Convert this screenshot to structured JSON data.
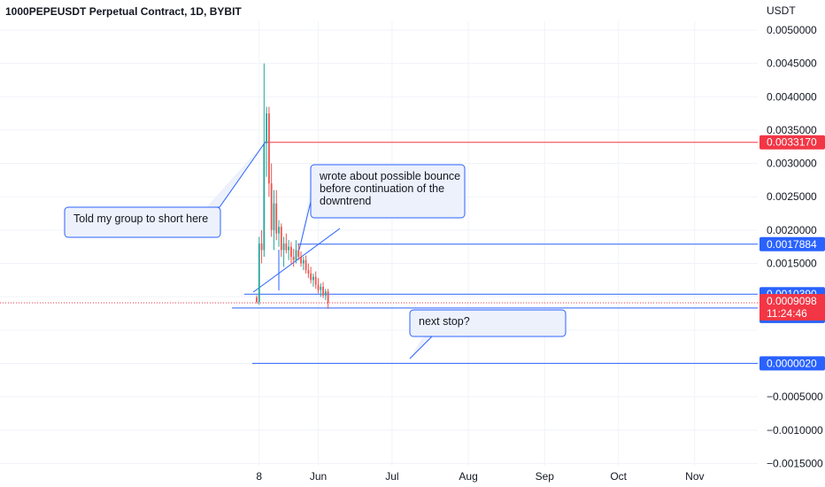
{
  "header": {
    "title": "1000PEPEUSDT Perpetual Contract, 1D, BYBIT",
    "currency": "USDT"
  },
  "colors": {
    "bull": "#26a69a",
    "bear": "#ef5350",
    "annotation": "#2962ff",
    "red_line": "#f23645",
    "note_fill": "#edf1fc",
    "note_border": "#2962ff"
  },
  "chart_data": {
    "type": "candlestick",
    "ylim": [
      -0.0015,
      0.005
    ],
    "y_ticks": [
      {
        "value": 0.005,
        "label": "0.0050000"
      },
      {
        "value": 0.0045,
        "label": "0.0045000"
      },
      {
        "value": 0.004,
        "label": "0.0040000"
      },
      {
        "value": 0.0035,
        "label": "0.0035000"
      },
      {
        "value": 0.003,
        "label": "0.0030000"
      },
      {
        "value": 0.0025,
        "label": "0.0025000"
      },
      {
        "value": 0.002,
        "label": "0.0020000"
      },
      {
        "value": 0.0015,
        "label": "0.0015000"
      },
      {
        "value": -0.0005,
        "label": "−0.0005000"
      },
      {
        "value": -0.001,
        "label": "−0.0010000"
      },
      {
        "value": -0.0015,
        "label": "−0.0015000"
      }
    ],
    "x_ticks": [
      {
        "day": 8,
        "label": "8"
      },
      {
        "day": 32,
        "label": "Jun"
      },
      {
        "day": 62,
        "label": "Jul"
      },
      {
        "day": 93,
        "label": "Aug"
      },
      {
        "day": 124,
        "label": "Sep"
      },
      {
        "day": 154,
        "label": "Oct"
      },
      {
        "day": 185,
        "label": "Nov"
      }
    ],
    "candles": [
      [
        0.00099,
        0.00102,
        0.0009,
        0.00092
      ],
      [
        0.00092,
        0.0019,
        0.00088,
        0.0018
      ],
      [
        0.0018,
        0.002,
        0.0015,
        0.0017
      ],
      [
        0.0017,
        0.0045,
        0.0016,
        0.0033
      ],
      [
        0.0033,
        0.00385,
        0.0028,
        0.00375
      ],
      [
        0.00375,
        0.00385,
        0.0025,
        0.0027
      ],
      [
        0.0027,
        0.003,
        0.0019,
        0.002
      ],
      [
        0.002,
        0.0026,
        0.0017,
        0.0024
      ],
      [
        0.0024,
        0.0026,
        0.00185,
        0.00195
      ],
      [
        0.00195,
        0.00215,
        0.00175,
        0.00205
      ],
      [
        0.00205,
        0.0021,
        0.0016,
        0.0017
      ],
      [
        0.0017,
        0.0019,
        0.00145,
        0.0018
      ],
      [
        0.0018,
        0.00195,
        0.00165,
        0.0017
      ],
      [
        0.0017,
        0.00185,
        0.00155,
        0.00175
      ],
      [
        0.00175,
        0.00182,
        0.0015,
        0.0016
      ],
      [
        0.0016,
        0.00172,
        0.00145,
        0.00155
      ],
      [
        0.00155,
        0.00185,
        0.0015,
        0.0017
      ],
      [
        0.0017,
        0.0018,
        0.00155,
        0.0016
      ],
      [
        0.0016,
        0.00168,
        0.00145,
        0.0015
      ],
      [
        0.0015,
        0.0016,
        0.0014,
        0.00155
      ],
      [
        0.00155,
        0.00162,
        0.00135,
        0.0014
      ],
      [
        0.0014,
        0.0015,
        0.00128,
        0.00135
      ],
      [
        0.00135,
        0.00145,
        0.0012,
        0.00125
      ],
      [
        0.00125,
        0.00135,
        0.00115,
        0.0013
      ],
      [
        0.0013,
        0.00138,
        0.00112,
        0.00118
      ],
      [
        0.00118,
        0.00128,
        0.00105,
        0.0011
      ],
      [
        0.0011,
        0.0012,
        0.001,
        0.00115
      ],
      [
        0.00115,
        0.00122,
        0.00098,
        0.00102
      ],
      [
        0.00102,
        0.00112,
        0.00095,
        0.00108
      ],
      [
        0.00108,
        0.00112,
        0.00082,
        0.00091
      ]
    ],
    "first_candle_day": 7,
    "horizontal_levels": [
      {
        "value": 0.003317,
        "label": "0.0033170",
        "color": "#f23645"
      },
      {
        "value": 0.0017884,
        "label": "0.0017884",
        "color": "#2962ff"
      },
      {
        "value": 0.001039,
        "label": "0.0010390",
        "color": "#2962ff"
      },
      {
        "value": 0.0008317,
        "label": "0.0008317",
        "color": "#2962ff"
      },
      {
        "value": 2e-06,
        "label": "0.0000020",
        "color": "#2962ff"
      }
    ],
    "last_price": {
      "value": 0.0009098,
      "label": "0.0009098",
      "countdown": "11:24:46",
      "color": "#f23645"
    },
    "notes": [
      {
        "text": [
          "Told my group to short here"
        ]
      },
      {
        "text": [
          "wrote about possible bounce",
          "before continuation of the",
          "downtrend"
        ]
      },
      {
        "text": [
          "next stop?"
        ]
      }
    ]
  }
}
